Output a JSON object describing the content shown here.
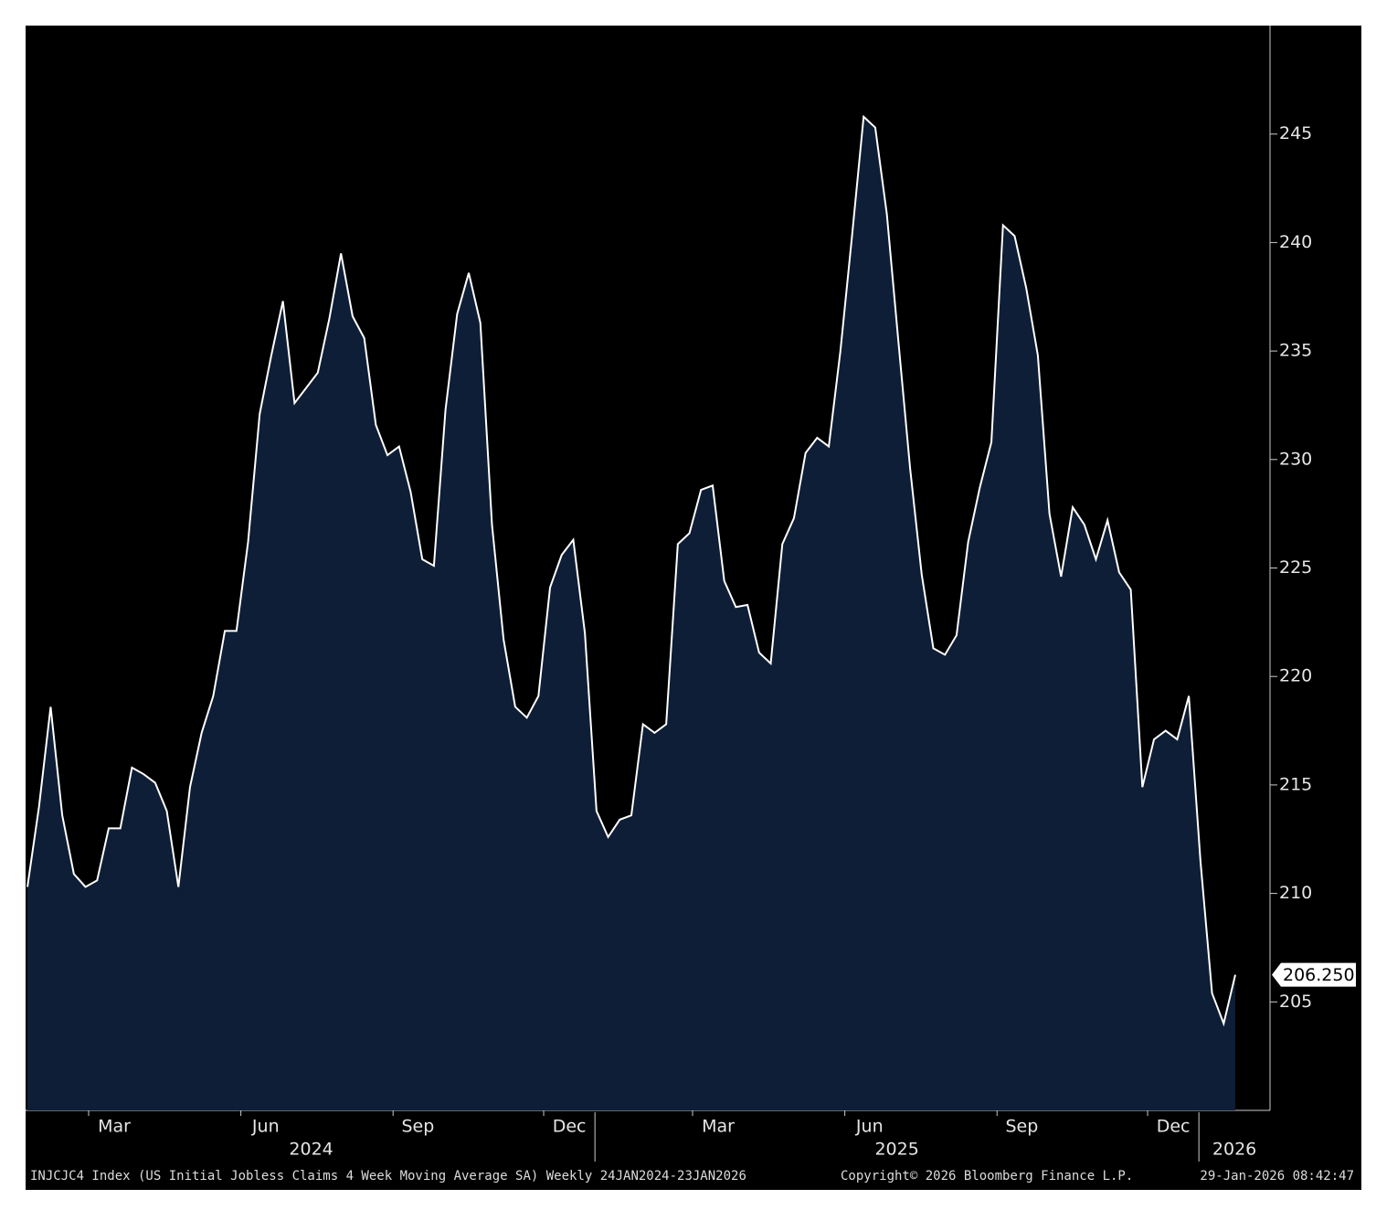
{
  "chart_data": {
    "type": "area",
    "values": [
      210.3,
      214.0,
      218.6,
      213.6,
      210.9,
      210.3,
      210.6,
      213.0,
      213.0,
      215.8,
      215.5,
      215.1,
      213.8,
      210.3,
      214.9,
      217.4,
      219.1,
      222.1,
      222.1,
      226.2,
      232.1,
      234.8,
      237.3,
      232.6,
      233.3,
      234.0,
      236.5,
      239.5,
      236.6,
      235.6,
      231.6,
      230.2,
      230.6,
      228.5,
      225.4,
      225.1,
      232.3,
      236.7,
      238.6,
      236.3,
      227.0,
      221.7,
      218.6,
      218.1,
      219.1,
      224.1,
      225.6,
      226.3,
      222.0,
      213.8,
      212.6,
      213.4,
      213.6,
      217.8,
      217.4,
      217.8,
      226.1,
      226.6,
      228.6,
      228.8,
      224.4,
      223.2,
      223.3,
      221.1,
      220.6,
      226.1,
      227.3,
      230.3,
      231.0,
      230.6,
      235.0,
      240.3,
      245.8,
      245.3,
      241.3,
      235.4,
      229.6,
      224.7,
      221.3,
      221.0,
      221.9,
      226.2,
      228.7,
      230.8,
      240.8,
      240.3,
      237.9,
      234.8,
      227.5,
      224.6,
      227.8,
      227.0,
      225.4,
      227.2,
      224.8,
      224.0,
      214.9,
      217.1,
      217.5,
      217.1,
      219.1,
      211.5,
      205.4,
      204.0,
      206.25
    ],
    "last_value": {
      "value": 206.25,
      "label": "206.250"
    },
    "color": "#0e1e36",
    "line_color": "#ffffff",
    "xlim": [
      "2024-01-24",
      "2026-01-23"
    ],
    "xticks": [
      {
        "value": "2024-03",
        "label": "Mar"
      },
      {
        "value": "2024-06",
        "label": "Jun"
      },
      {
        "value": "2024-09",
        "label": "Sep"
      },
      {
        "value": "2024-12",
        "label": "Dec"
      },
      {
        "value": "2025-03",
        "label": "Mar"
      },
      {
        "value": "2025-06",
        "label": "Jun"
      },
      {
        "value": "2025-09",
        "label": "Sep"
      },
      {
        "value": "2025-12",
        "label": "Dec"
      }
    ],
    "years": [
      2024,
      2025,
      2026
    ],
    "ylim": [
      200,
      250
    ],
    "yticks": [
      205,
      210,
      215,
      220,
      225,
      230,
      235,
      240,
      245
    ],
    "footer": "INJCJC4 Index (US Initial Jobless Claims 4 Week Moving Average SA) Weekly 24JAN2024-23JAN2026",
    "copyright": "Copyright© 2026 Bloomberg Finance L.P.",
    "timestamp": "29-Jan-2026 08:42:47"
  }
}
